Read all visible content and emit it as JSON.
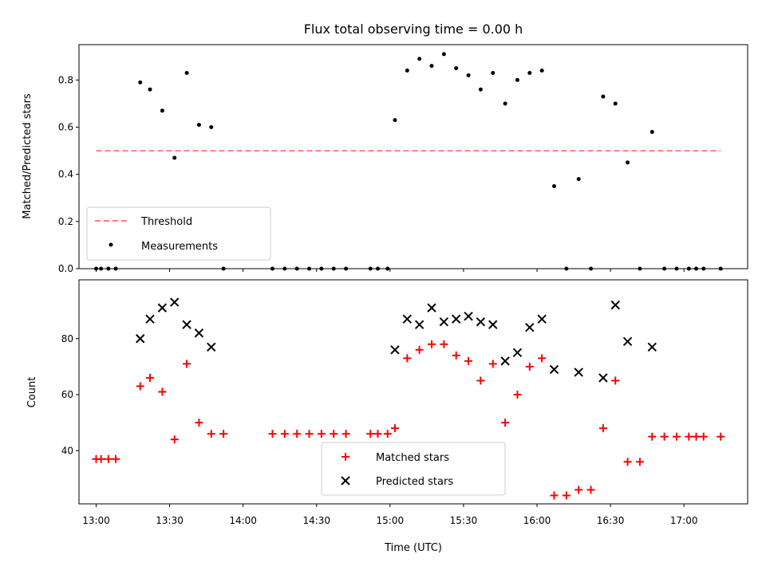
{
  "chart_data": [
    {
      "type": "scatter",
      "title": "Flux total observing time = 0.00 h",
      "xlabel": "",
      "ylabel": "Matched/Predicted stars",
      "ylim": [
        0,
        0.95
      ],
      "yticks": [
        0.0,
        0.2,
        0.4,
        0.6,
        0.8
      ],
      "ytick_labels": [
        "0.0",
        "0.2",
        "0.4",
        "0.6",
        "0.8"
      ],
      "legend_placement": "lower-left",
      "threshold": {
        "name": "Threshold",
        "value": 0.5,
        "x_start": "13:00",
        "x_end": "17:15",
        "color": "#ff7f7f",
        "style": "dashed"
      },
      "series": [
        {
          "name": "Measurements",
          "color": "#000000",
          "marker": "dot",
          "x": [
            "13:00",
            "13:02",
            "13:05",
            "13:08",
            "13:18",
            "13:22",
            "13:27",
            "13:32",
            "13:37",
            "13:42",
            "13:47",
            "13:52",
            "14:12",
            "14:17",
            "14:22",
            "14:27",
            "14:32",
            "14:37",
            "14:42",
            "14:52",
            "14:55",
            "14:59",
            "15:02",
            "15:07",
            "15:12",
            "15:17",
            "15:22",
            "15:27",
            "15:32",
            "15:37",
            "15:42",
            "15:47",
            "15:52",
            "15:57",
            "16:02",
            "16:07",
            "16:12",
            "16:17",
            "16:22",
            "16:27",
            "16:32",
            "16:37",
            "16:42",
            "16:47",
            "16:52",
            "16:57",
            "17:02",
            "17:05",
            "17:08",
            "17:15"
          ],
          "y": [
            0,
            0,
            0,
            0,
            0.79,
            0.76,
            0.67,
            0.47,
            0.83,
            0.61,
            0.6,
            0,
            0,
            0,
            0,
            0,
            0,
            0,
            0,
            0,
            0,
            0,
            0.63,
            0.84,
            0.89,
            0.86,
            0.91,
            0.85,
            0.82,
            0.76,
            0.83,
            0.7,
            0.8,
            0.83,
            0.84,
            0.35,
            0,
            0.38,
            0,
            0.73,
            0.7,
            0.45,
            0,
            0.58,
            0,
            0,
            0,
            0,
            0,
            0
          ]
        }
      ]
    },
    {
      "type": "scatter",
      "title": "",
      "xlabel": "Time (UTC)",
      "ylabel": "Count",
      "ylim": [
        21,
        101
      ],
      "yticks": [
        40,
        60,
        80
      ],
      "ytick_labels": [
        "40",
        "60",
        "80"
      ],
      "xlim": [
        "12:53",
        "17:26"
      ],
      "xticks": [
        "13:00",
        "13:30",
        "14:00",
        "14:30",
        "15:00",
        "15:30",
        "16:00",
        "16:30",
        "17:00"
      ],
      "xtick_labels": [
        "13:00",
        "13:30",
        "14:00",
        "14:30",
        "15:00",
        "15:30",
        "16:00",
        "16:30",
        "17:00"
      ],
      "legend_placement": "lower-center",
      "series": [
        {
          "name": "Matched stars",
          "color": "#ff0000",
          "marker": "plus",
          "x": [
            "13:00",
            "13:02",
            "13:05",
            "13:08",
            "13:18",
            "13:22",
            "13:27",
            "13:32",
            "13:37",
            "13:42",
            "13:47",
            "13:52",
            "14:12",
            "14:17",
            "14:22",
            "14:27",
            "14:32",
            "14:37",
            "14:42",
            "14:52",
            "14:55",
            "14:59",
            "15:02",
            "15:07",
            "15:12",
            "15:17",
            "15:22",
            "15:27",
            "15:32",
            "15:37",
            "15:42",
            "15:47",
            "15:52",
            "15:57",
            "16:02",
            "16:07",
            "16:12",
            "16:17",
            "16:22",
            "16:27",
            "16:32",
            "16:37",
            "16:42",
            "16:47",
            "16:52",
            "16:57",
            "17:02",
            "17:05",
            "17:08",
            "17:15"
          ],
          "y": [
            37,
            37,
            37,
            37,
            63,
            66,
            61,
            44,
            71,
            50,
            46,
            46,
            46,
            46,
            46,
            46,
            46,
            46,
            46,
            46,
            46,
            46,
            48,
            73,
            76,
            78,
            78,
            74,
            72,
            65,
            71,
            50,
            60,
            70,
            73,
            24,
            24,
            26,
            26,
            48,
            65,
            36,
            36,
            45,
            45,
            45,
            45,
            45,
            45,
            45
          ]
        },
        {
          "name": "Predicted stars",
          "color": "#000000",
          "marker": "cross",
          "x": [
            "13:18",
            "13:22",
            "13:27",
            "13:32",
            "13:37",
            "13:42",
            "13:47",
            "15:02",
            "15:07",
            "15:12",
            "15:17",
            "15:22",
            "15:27",
            "15:32",
            "15:37",
            "15:42",
            "15:47",
            "15:52",
            "15:57",
            "16:02",
            "16:07",
            "16:17",
            "16:27",
            "16:32",
            "16:37",
            "16:47"
          ],
          "y": [
            80,
            87,
            91,
            93,
            85,
            82,
            77,
            76,
            87,
            85,
            91,
            86,
            87,
            88,
            86,
            85,
            72,
            75,
            84,
            87,
            69,
            68,
            66,
            92,
            79,
            77
          ]
        }
      ]
    }
  ]
}
